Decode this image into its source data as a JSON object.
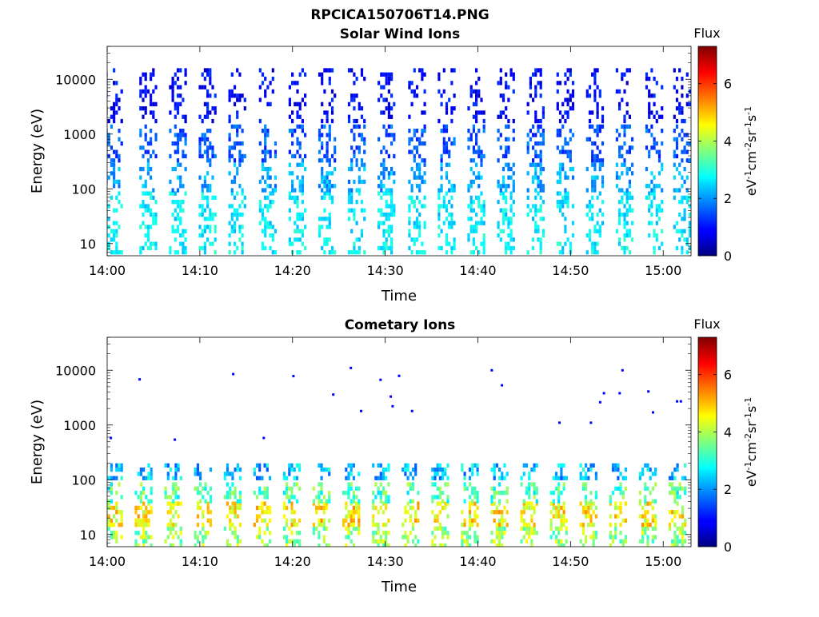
{
  "figure_title": "RPCICA150706T14.PNG",
  "chart_data": [
    {
      "type": "heatmap",
      "title": "Solar Wind Ions",
      "xlabel": "Time",
      "ylabel": "Energy (eV)",
      "x_ticks": [
        "14:00",
        "14:10",
        "14:20",
        "14:30",
        "14:40",
        "14:50",
        "15:00"
      ],
      "y_ticks": [
        "10",
        "100",
        "1000",
        "10000"
      ],
      "y_scale": "log",
      "ylim": [
        6,
        40000
      ],
      "xlim": [
        "14:00",
        "15:03"
      ],
      "colorbar": {
        "label": "Flux",
        "unit_label": "eV-1cm-2sr-1s-1",
        "ticks": [
          "0",
          "2",
          "4",
          "6"
        ],
        "range": [
          0,
          7.3
        ],
        "colormap": "jet"
      },
      "sweep_times_min": [
        0.6,
        4.3,
        7.5,
        10.7,
        13.9,
        17.2,
        20.4,
        23.6,
        26.8,
        30.0,
        33.3,
        36.5,
        39.7,
        42.9,
        46.1,
        49.3,
        52.5,
        55.7,
        58.9,
        61.9
      ],
      "bands": [
        {
          "e_min": 6,
          "e_max": 22,
          "flux": 2.7
        },
        {
          "e_min": 22,
          "e_max": 90,
          "flux": 2.6
        },
        {
          "e_min": 90,
          "e_max": 300,
          "flux": 2.1
        },
        {
          "e_min": 300,
          "e_max": 1500,
          "flux": 1.5
        },
        {
          "e_min": 1500,
          "e_max": 16000,
          "flux": 0.9
        }
      ]
    },
    {
      "type": "heatmap",
      "title": "Cometary Ions",
      "xlabel": "Time",
      "ylabel": "Energy (eV)",
      "x_ticks": [
        "14:00",
        "14:10",
        "14:20",
        "14:30",
        "14:40",
        "14:50",
        "15:00"
      ],
      "y_ticks": [
        "10",
        "100",
        "1000",
        "10000"
      ],
      "y_scale": "log",
      "ylim": [
        6,
        40000
      ],
      "xlim": [
        "14:00",
        "15:03"
      ],
      "colorbar": {
        "label": "Flux",
        "unit_label": "eV-1cm-2sr-1s-1",
        "ticks": [
          "0",
          "2",
          "4",
          "6"
        ],
        "range": [
          0,
          7.3
        ],
        "colormap": "jet"
      },
      "sweep_times_min": [
        0.6,
        3.8,
        7.0,
        10.2,
        13.4,
        16.6,
        19.8,
        23.0,
        26.2,
        29.4,
        32.6,
        35.8,
        39.0,
        42.2,
        45.4,
        48.6,
        51.8,
        55.0,
        58.2,
        61.4
      ],
      "bands": [
        {
          "e_min": 6,
          "e_max": 14,
          "flux": 3.8
        },
        {
          "e_min": 14,
          "e_max": 40,
          "flux": 4.6
        },
        {
          "e_min": 40,
          "e_max": 90,
          "flux": 3.3
        },
        {
          "e_min": 90,
          "e_max": 200,
          "flux": 2.3
        }
      ],
      "isolated_points": [
        {
          "t": 0.4,
          "e": 580
        },
        {
          "t": 3.5,
          "e": 6800
        },
        {
          "t": 7.3,
          "e": 540
        },
        {
          "t": 13.6,
          "e": 8500
        },
        {
          "t": 16.9,
          "e": 580
        },
        {
          "t": 20.1,
          "e": 7800
        },
        {
          "t": 24.4,
          "e": 3600
        },
        {
          "t": 26.3,
          "e": 11000
        },
        {
          "t": 27.4,
          "e": 1800
        },
        {
          "t": 29.5,
          "e": 6700
        },
        {
          "t": 30.6,
          "e": 3300
        },
        {
          "t": 30.8,
          "e": 2200
        },
        {
          "t": 31.5,
          "e": 7900
        },
        {
          "t": 32.9,
          "e": 1800
        },
        {
          "t": 41.5,
          "e": 10000
        },
        {
          "t": 42.6,
          "e": 5300
        },
        {
          "t": 48.8,
          "e": 1100
        },
        {
          "t": 52.2,
          "e": 1100
        },
        {
          "t": 53.2,
          "e": 2600
        },
        {
          "t": 53.6,
          "e": 3800
        },
        {
          "t": 55.3,
          "e": 3800
        },
        {
          "t": 55.6,
          "e": 10000
        },
        {
          "t": 58.4,
          "e": 4100
        },
        {
          "t": 58.9,
          "e": 1700
        },
        {
          "t": 61.5,
          "e": 2700
        },
        {
          "t": 61.9,
          "e": 2700
        }
      ]
    }
  ]
}
